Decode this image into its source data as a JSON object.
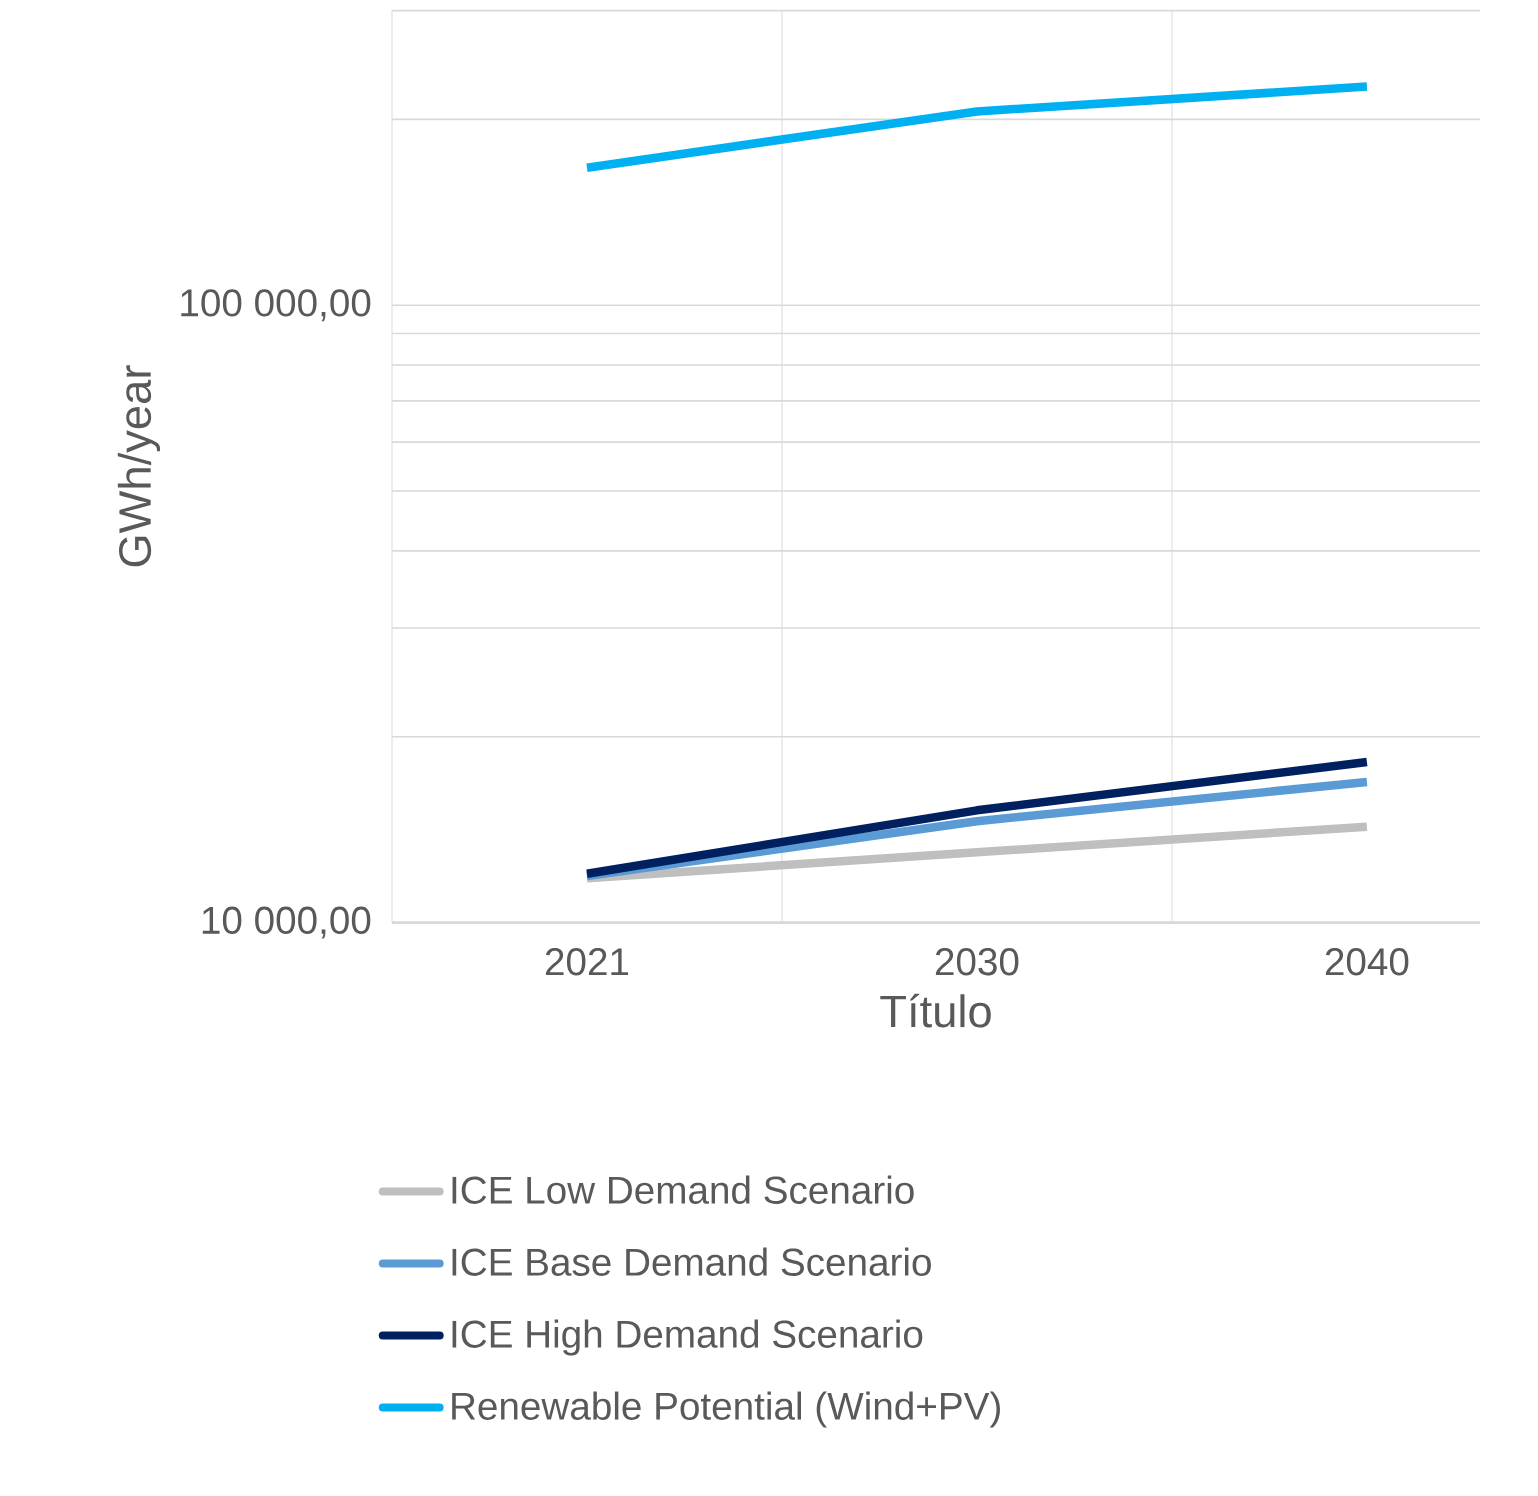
{
  "chart_data": {
    "type": "line",
    "xlabel": "Título",
    "ylabel": "GWh/year",
    "categories": [
      "2021",
      "2030",
      "2040"
    ],
    "log": "y",
    "ylim": [
      10000,
      300000
    ],
    "yticks": [
      {
        "value": 10000,
        "label": "10 000,00"
      },
      {
        "value": 20000,
        "label": null
      },
      {
        "value": 30000,
        "label": null
      },
      {
        "value": 40000,
        "label": null
      },
      {
        "value": 50000,
        "label": null
      },
      {
        "value": 60000,
        "label": null
      },
      {
        "value": 70000,
        "label": null
      },
      {
        "value": 80000,
        "label": null
      },
      {
        "value": 90000,
        "label": null
      },
      {
        "value": 100000,
        "label": "100 000,00"
      },
      {
        "value": 200000,
        "label": null
      },
      {
        "value": 300000,
        "label": null
      }
    ],
    "grid": true,
    "legend": "bottom",
    "marker": "none",
    "line_style": "solid",
    "series": [
      {
        "name": "ICE Low Demand Scenario",
        "color": "#bfbfbf",
        "values": [
          11800,
          13000,
          14300
        ]
      },
      {
        "name": "ICE Base Demand Scenario",
        "color": "#5b9bd5",
        "values": [
          11900,
          14600,
          16900
        ]
      },
      {
        "name": "ICE High Demand Scenario",
        "color": "#002060",
        "values": [
          12000,
          15200,
          18200
        ]
      },
      {
        "name": "Renewable Potential (Wind+PV)",
        "color": "#00b0f0",
        "values": [
          167000,
          206000,
          226000
        ]
      }
    ]
  }
}
